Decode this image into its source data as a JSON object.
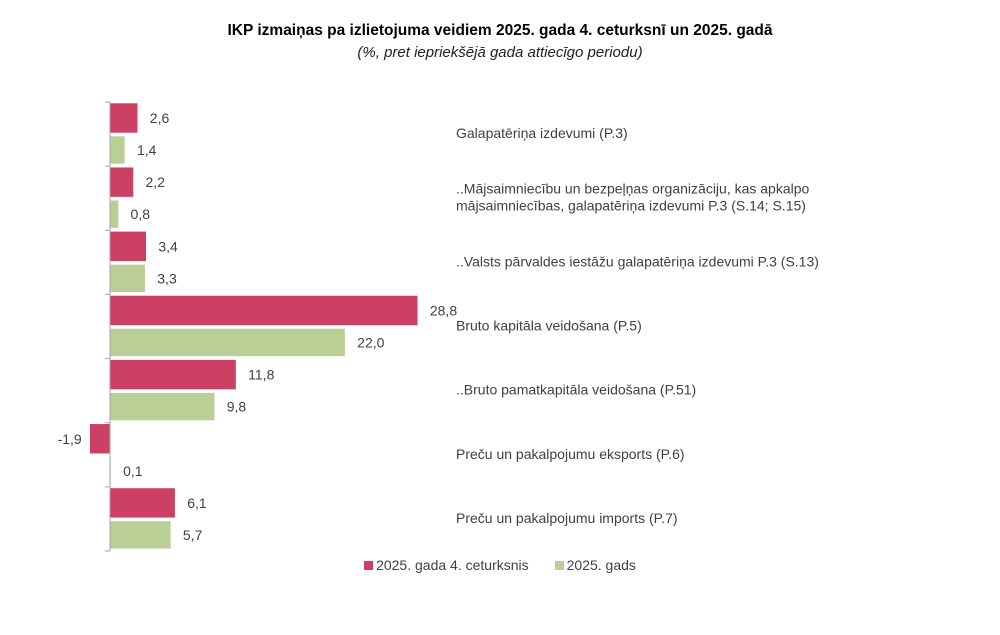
{
  "chart_data": {
    "type": "bar",
    "orientation": "horizontal",
    "title": "IKP izmaiņas pa izlietojuma veidiem 2025. gada 4. ceturksnī un 2025. gadā",
    "subtitle": "(%, pret iepriekšējā gada attiecīgo periodu)",
    "xlabel": "",
    "ylabel": "",
    "xlim": [
      -1.9,
      28.8
    ],
    "grid": false,
    "legend_position": "bottom",
    "categories": [
      "Galapatēriņa izdevumi (P.3)",
      "..Mājsaimniecību un bezpeļņas organizāciju, kas apkalpo mājsaimniecības, galapatēriņa izdevumi P.3 (S.14; S.15)",
      "..Valsts pārvaldes iestāžu galapatēriņa izdevumi P.3 (S.13)",
      "Bruto kapitāla veidošana (P.5)",
      "..Bruto pamatkapitāla veidošana (P.51)",
      "Preču un pakalpojumu eksports (P.6)",
      "Preču un pakalpojumu imports (P.7)"
    ],
    "category_lines": [
      [
        "Galapatēriņa izdevumi (P.3)"
      ],
      [
        "..Mājsaimniecību un bezpeļņas organizāciju, kas apkalpo",
        "mājsaimniecības, galapatēriņa izdevumi P.3 (S.14; S.15)"
      ],
      [
        "..Valsts pārvaldes iestāžu galapatēriņa izdevumi P.3 (S.13)"
      ],
      [
        "Bruto kapitāla veidošana (P.5)"
      ],
      [
        "..Bruto pamatkapitāla veidošana (P.51)"
      ],
      [
        "Preču un pakalpojumu eksports (P.6)"
      ],
      [
        "Preču un pakalpojumu imports (P.7)"
      ]
    ],
    "series": [
      {
        "name": "2025. gada 4. ceturksnis",
        "color": "#cc4163",
        "values": [
          2.6,
          2.2,
          3.4,
          28.8,
          11.8,
          -1.9,
          6.1
        ],
        "labels": [
          "2,6",
          "2,2",
          "3,4",
          "28,8",
          "11,8",
          "-1,9",
          "6,1"
        ]
      },
      {
        "name": "2025. gads",
        "color": "#b9cf95",
        "values": [
          1.4,
          0.8,
          3.3,
          22.0,
          9.8,
          0.1,
          5.7
        ],
        "labels": [
          "1,4",
          "0,8",
          "3,3",
          "22,0",
          "9,8",
          "0,1",
          "5,7"
        ]
      }
    ]
  }
}
